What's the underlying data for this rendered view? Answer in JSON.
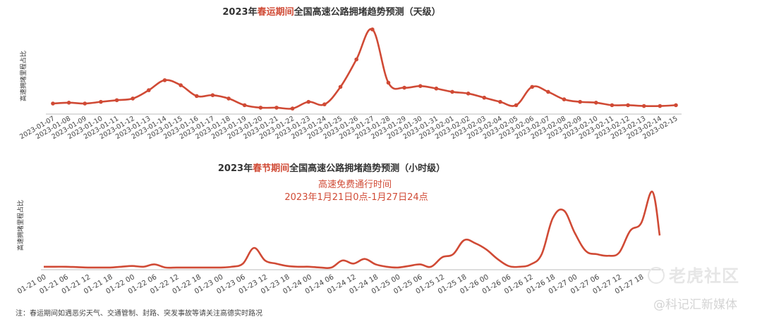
{
  "colors": {
    "line": "#d04a35",
    "accent": "#d04a35",
    "axis": "#bdbdbd",
    "text": "#333333"
  },
  "footnote": "注：春运期间如遇恶劣天气、交通管制、封路、突发事故等请关注高德实时路况",
  "watermark": {
    "logo": "老虎社区",
    "handle": "@科记汇新媒体"
  },
  "chart_data": [
    {
      "type": "line",
      "title_parts": [
        {
          "text": "2023年",
          "accent": false
        },
        {
          "text": "春运期间",
          "accent": true
        },
        {
          "text": "全国高速公路拥堵趋势预测（天级）",
          "accent": false
        }
      ],
      "ylabel": "高速拥堵里程占比",
      "show_markers": true,
      "categories": [
        "2023-01-07",
        "2023-01-08",
        "2023-01-09",
        "2023-01-10",
        "2023-01-11",
        "2023-01-12",
        "2023-01-13",
        "2023-01-14",
        "2023-01-15",
        "2023-01-16",
        "2023-01-17",
        "2023-01-18",
        "2023-01-19",
        "2023-01-20",
        "2023-01-21",
        "2023-01-22",
        "2023-01-23",
        "2023-01-24",
        "2023-01-25",
        "2023-01-26",
        "2023-01-27",
        "2023-01-28",
        "2023-01-29",
        "2023-01-30",
        "2023-01-31",
        "2023-02-01",
        "2023-02-02",
        "2023-02-03",
        "2023-02-04",
        "2023-02-05",
        "2023-02-06",
        "2023-02-07",
        "2023-02-08",
        "2023-02-09",
        "2023-02-10",
        "2023-02-11",
        "2023-02-12",
        "2023-02-13",
        "2023-02-14",
        "2023-02-15"
      ],
      "values": [
        0.11,
        0.12,
        0.11,
        0.13,
        0.15,
        0.17,
        0.27,
        0.39,
        0.33,
        0.2,
        0.21,
        0.17,
        0.09,
        0.06,
        0.06,
        0.05,
        0.13,
        0.1,
        0.31,
        0.64,
        1.0,
        0.36,
        0.3,
        0.32,
        0.29,
        0.25,
        0.23,
        0.18,
        0.13,
        0.09,
        0.31,
        0.25,
        0.16,
        0.13,
        0.12,
        0.09,
        0.09,
        0.08,
        0.08,
        0.09
      ],
      "ylim": [
        0,
        1.1
      ]
    },
    {
      "type": "line",
      "title_parts": [
        {
          "text": "2023年",
          "accent": false
        },
        {
          "text": "春节期间",
          "accent": true
        },
        {
          "text": "全国高速公路拥堵趋势预测（小时级）",
          "accent": false
        }
      ],
      "subtitle_lines": [
        "高速免费通行时间",
        "2023年1月21日0点-1月27日24点"
      ],
      "ylabel": "高速拥堵里程占比",
      "show_markers": false,
      "tick_labels": [
        "01-21 00",
        "01-21 06",
        "01-21 12",
        "01-21 18",
        "01-22 00",
        "01-22 06",
        "01-22 12",
        "01-22 18",
        "01-23 00",
        "01-23 06",
        "01-23 12",
        "01-23 18",
        "01-24 00",
        "01-24 06",
        "01-24 12",
        "01-24 18",
        "01-25 00",
        "01-25 06",
        "01-25 12",
        "01-25 18",
        "01-26 00",
        "01-26 06",
        "01-26 12",
        "01-26 18",
        "01-27 00",
        "01-27 06",
        "01-27 12",
        "01-27 18"
      ],
      "x": [
        0,
        3,
        6,
        9,
        12,
        15,
        18,
        21,
        24,
        27,
        30,
        33,
        36,
        39,
        42,
        45,
        48,
        51,
        54,
        57,
        60,
        63,
        66,
        69,
        72,
        75,
        78,
        81,
        84,
        87,
        90,
        93,
        96,
        99,
        102,
        105,
        108,
        111,
        114,
        117,
        120,
        123,
        126,
        129,
        132,
        135,
        138,
        141,
        144,
        147,
        150,
        153,
        156,
        159,
        162,
        165,
        167
      ],
      "values": [
        0.02,
        0.02,
        0.02,
        0.015,
        0.01,
        0.01,
        0.01,
        0.02,
        0.03,
        0.02,
        0.05,
        0.01,
        0.01,
        0.01,
        0.01,
        0.01,
        0.01,
        0.02,
        0.06,
        0.26,
        0.1,
        0.06,
        0.03,
        0.02,
        0.02,
        0.01,
        0.01,
        0.1,
        0.06,
        0.12,
        0.05,
        0.02,
        0.01,
        0.03,
        0.05,
        0.02,
        0.14,
        0.18,
        0.36,
        0.32,
        0.24,
        0.12,
        0.03,
        0.02,
        0.05,
        0.18,
        0.64,
        0.74,
        0.45,
        0.22,
        0.18,
        0.16,
        0.2,
        0.48,
        0.58,
        0.98,
        0.42
      ],
      "xlim": [
        0,
        167
      ],
      "ylim": [
        0,
        1.0
      ]
    }
  ]
}
